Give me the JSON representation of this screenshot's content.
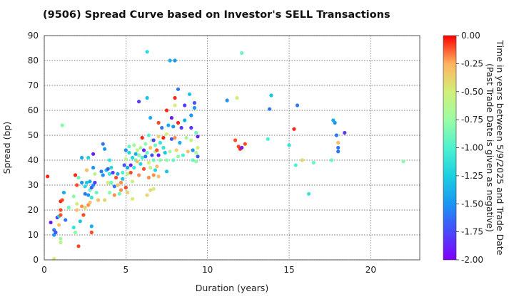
{
  "chart_data": {
    "type": "scatter",
    "title": "(9506)   Spread Curve based on Investor's SELL Transactions",
    "xlabel": "Duration (years)",
    "ylabel": "Spread (bp)",
    "xlim": [
      0,
      23
    ],
    "ylim": [
      0,
      90
    ],
    "xticks": [
      0,
      5,
      10,
      15,
      20
    ],
    "yticks": [
      0,
      10,
      20,
      30,
      40,
      50,
      60,
      70,
      80,
      90
    ],
    "grid": true,
    "colorbar": {
      "label_line1": "Time in years between 5/9/2025 and Trade Date",
      "label_line2": "(Past Trade Date is given as negative)",
      "range": [
        -2.0,
        0.0
      ],
      "ticks": [
        "0.00",
        "-0.25",
        "-0.50",
        "-0.75",
        "-1.00",
        "-1.25",
        "-1.50",
        "-1.75",
        "-2.00"
      ],
      "colormap": "rainbow"
    },
    "points": [
      [
        0.2,
        33.5,
        -0.05
      ],
      [
        0.4,
        15,
        -1.9
      ],
      [
        0.6,
        12,
        -1.6
      ],
      [
        0.6,
        10,
        -1.5
      ],
      [
        0.7,
        11,
        -1.7
      ],
      [
        0.6,
        0.5,
        -0.5
      ],
      [
        0.8,
        17,
        -1.8
      ],
      [
        0.9,
        17.5,
        -1.2
      ],
      [
        0.9,
        14,
        -0.3
      ],
      [
        1.0,
        20,
        -0.1
      ],
      [
        1.0,
        18,
        -0.1
      ],
      [
        1.0,
        23.5,
        -0.05
      ],
      [
        1.0,
        8.5,
        -0.7
      ],
      [
        1.0,
        7,
        -0.6
      ],
      [
        1.1,
        24,
        -0.1
      ],
      [
        1.1,
        54,
        -0.8
      ],
      [
        1.2,
        27,
        -1.4
      ],
      [
        1.3,
        16,
        -1.6
      ],
      [
        1.5,
        21,
        -0.9
      ],
      [
        1.8,
        25.5,
        -0.8
      ],
      [
        1.8,
        13,
        -1.1
      ],
      [
        1.9,
        11,
        -0.8
      ],
      [
        1.9,
        34,
        -0.05
      ],
      [
        2.0,
        30,
        -0.1
      ],
      [
        2.0,
        22.5,
        -0.5
      ],
      [
        2.0,
        20,
        -0.3
      ],
      [
        2.1,
        33,
        -0.9
      ],
      [
        2.1,
        5.5,
        -0.1
      ],
      [
        2.2,
        15.5,
        -1.3
      ],
      [
        2.3,
        31,
        -1.5
      ],
      [
        2.3,
        41,
        -1.4
      ],
      [
        2.3,
        21.5,
        -0.2
      ],
      [
        2.4,
        18,
        -0.1
      ],
      [
        2.5,
        29.5,
        -1.2
      ],
      [
        2.5,
        26.5,
        -1.6
      ],
      [
        2.5,
        21,
        -0.4
      ],
      [
        2.6,
        36,
        -0.3
      ],
      [
        2.6,
        31,
        -1.3
      ],
      [
        2.7,
        41,
        -1.2
      ],
      [
        2.7,
        26,
        -1.5
      ],
      [
        2.7,
        22,
        -0.2
      ],
      [
        2.8,
        31.5,
        -1.4
      ],
      [
        2.8,
        28,
        -0.9
      ],
      [
        2.8,
        23,
        -0.3
      ],
      [
        2.9,
        29,
        -1.7
      ],
      [
        2.9,
        25,
        -1.1
      ],
      [
        2.9,
        13.5,
        -1.4
      ],
      [
        2.9,
        11,
        -0.1
      ],
      [
        3.0,
        42.5,
        -1.9
      ],
      [
        3.0,
        37,
        -1.5
      ],
      [
        3.0,
        30,
        -1.5
      ],
      [
        3.1,
        34.5,
        -0.6
      ],
      [
        3.1,
        31,
        -1.8
      ],
      [
        3.2,
        27,
        -0.9
      ],
      [
        3.3,
        24,
        -0.3
      ],
      [
        3.5,
        35.5,
        -1.6
      ],
      [
        3.6,
        34,
        -1.5
      ],
      [
        3.6,
        46.5,
        -1.6
      ],
      [
        3.7,
        44.5,
        -1.5
      ],
      [
        3.7,
        24,
        -0.4
      ],
      [
        3.8,
        36,
        -1.3
      ],
      [
        3.9,
        36.5,
        -1.7
      ],
      [
        3.9,
        31,
        -0.5
      ],
      [
        4.0,
        40,
        -1.1
      ],
      [
        4.0,
        34.5,
        -1.1
      ],
      [
        4.0,
        27,
        -0.8
      ],
      [
        4.1,
        37,
        -1.2
      ],
      [
        4.1,
        31,
        -0.9
      ],
      [
        4.2,
        35,
        -1.8
      ],
      [
        4.3,
        29.5,
        -1.6
      ],
      [
        4.3,
        26,
        -0.2
      ],
      [
        4.4,
        33,
        -0.1
      ],
      [
        4.5,
        34.5,
        -1.4
      ],
      [
        4.5,
        30,
        -0.3
      ],
      [
        4.6,
        26.5,
        -0.9
      ],
      [
        4.7,
        31,
        -0.2
      ],
      [
        4.7,
        28,
        -0.2
      ],
      [
        4.8,
        35,
        -1.0
      ],
      [
        4.8,
        32.5,
        -1.3
      ],
      [
        4.9,
        38,
        -1.7
      ],
      [
        5.0,
        44,
        -1.5
      ],
      [
        5.0,
        40.5,
        -0.6
      ],
      [
        5.0,
        29,
        -0.1
      ],
      [
        5.1,
        37,
        -1.4
      ],
      [
        5.1,
        34.5,
        -0.6
      ],
      [
        5.1,
        27,
        -0.4
      ],
      [
        5.2,
        45.5,
        -0.9
      ],
      [
        5.2,
        43,
        -1.2
      ],
      [
        5.3,
        38,
        -1.9
      ],
      [
        5.3,
        35,
        -0.1
      ],
      [
        5.4,
        41,
        -1.2
      ],
      [
        5.4,
        31.5,
        -0.5
      ],
      [
        5.4,
        24.5,
        -0.5
      ],
      [
        5.5,
        46,
        -0.7
      ],
      [
        5.5,
        37,
        -1.1
      ],
      [
        5.6,
        42.5,
        -1.4
      ],
      [
        5.6,
        40,
        -0.9
      ],
      [
        5.7,
        44,
        -0.6
      ],
      [
        5.7,
        39.5,
        -0.3
      ],
      [
        5.8,
        42,
        -0.8
      ],
      [
        5.8,
        34,
        -0.2
      ],
      [
        5.8,
        63.5,
        -1.8
      ],
      [
        5.9,
        45,
        -0.7
      ],
      [
        5.9,
        38.5,
        -1.2
      ],
      [
        6.0,
        49,
        -0.05
      ],
      [
        6.0,
        41,
        -1.0
      ],
      [
        6.1,
        36.5,
        -0.1
      ],
      [
        6.1,
        44,
        -1.9
      ],
      [
        6.2,
        46.5,
        -0.8
      ],
      [
        6.2,
        41.5,
        -1.6
      ],
      [
        6.3,
        83.5,
        -1.2
      ],
      [
        6.3,
        65,
        -1.3
      ],
      [
        6.3,
        43,
        -0.9
      ],
      [
        6.3,
        26,
        -0.4
      ],
      [
        6.4,
        50,
        -1.0
      ],
      [
        6.4,
        39,
        -0.5
      ],
      [
        6.4,
        33,
        -0.2
      ],
      [
        6.5,
        57,
        -1.4
      ],
      [
        6.5,
        45,
        -0.3
      ],
      [
        6.5,
        37,
        -0.6
      ],
      [
        6.5,
        28,
        -0.4
      ],
      [
        6.6,
        42,
        -1.7
      ],
      [
        6.6,
        48,
        -0.7
      ],
      [
        6.7,
        48,
        -1.8
      ],
      [
        6.7,
        40,
        -0.9
      ],
      [
        6.7,
        34,
        -0.2
      ],
      [
        6.7,
        28.5,
        -0.5
      ],
      [
        6.8,
        46,
        -0.9
      ],
      [
        6.8,
        43.5,
        -0.6
      ],
      [
        6.8,
        36,
        -1.2
      ],
      [
        6.9,
        44,
        -0.1
      ],
      [
        6.9,
        37.5,
        -0.3
      ],
      [
        7.0,
        55,
        -0.1
      ],
      [
        7.0,
        49.5,
        -0.4
      ],
      [
        7.0,
        42,
        -1.9
      ],
      [
        7.0,
        33.5,
        -0.3
      ],
      [
        7.1,
        47,
        -1.1
      ],
      [
        7.1,
        40,
        -0.8
      ],
      [
        7.2,
        53,
        -1.6
      ],
      [
        7.3,
        45,
        -1.1
      ],
      [
        7.3,
        49,
        -0.05
      ],
      [
        7.4,
        43,
        -1.3
      ],
      [
        7.5,
        60,
        -0.05
      ],
      [
        7.5,
        50.5,
        -0.5
      ],
      [
        7.5,
        40,
        -0.8
      ],
      [
        7.5,
        35.5,
        -1.3
      ],
      [
        7.6,
        54,
        -1.4
      ],
      [
        7.7,
        43.5,
        -0.7
      ],
      [
        7.7,
        80,
        -1.4
      ],
      [
        7.8,
        57,
        -1.9
      ],
      [
        7.8,
        48.5,
        -1.7
      ],
      [
        7.9,
        53.5,
        -1.5
      ],
      [
        7.9,
        40,
        -0.9
      ],
      [
        8.0,
        80,
        -1.5
      ],
      [
        8.0,
        65,
        -0.05
      ],
      [
        8.0,
        62,
        -0.5
      ],
      [
        8.0,
        49,
        -0.2
      ],
      [
        8.1,
        44,
        -0.4
      ],
      [
        8.2,
        68.5,
        -1.6
      ],
      [
        8.2,
        55,
        -0.05
      ],
      [
        8.2,
        41.5,
        -0.8
      ],
      [
        8.3,
        47,
        -1.4
      ],
      [
        8.4,
        53,
        -1.8
      ],
      [
        8.5,
        42,
        -1.0
      ],
      [
        8.6,
        62,
        -1.8
      ],
      [
        8.6,
        56,
        -1.4
      ],
      [
        8.7,
        49,
        -0.7
      ],
      [
        8.8,
        43.5,
        -0.3
      ],
      [
        8.9,
        66.5,
        -1.3
      ],
      [
        9.0,
        53,
        -1.8
      ],
      [
        9.0,
        58,
        -1.5
      ],
      [
        9.0,
        48,
        -0.6
      ],
      [
        9.1,
        44,
        -1.5
      ],
      [
        9.1,
        40,
        -0.9
      ],
      [
        9.2,
        63,
        -1.7
      ],
      [
        9.2,
        61,
        -1.5
      ],
      [
        9.3,
        51,
        -0.9
      ],
      [
        9.3,
        43,
        -0.7
      ],
      [
        9.3,
        39.5,
        -0.8
      ],
      [
        9.4,
        49.5,
        -1.9
      ],
      [
        9.4,
        45,
        -0.5
      ],
      [
        9.4,
        41.5,
        -1.7
      ],
      [
        11.2,
        64,
        -1.5
      ],
      [
        11.8,
        65,
        -0.5
      ],
      [
        11.7,
        48,
        -0.1
      ],
      [
        11.9,
        45.5,
        -0.1
      ],
      [
        12.0,
        44.5,
        -0.05
      ],
      [
        12.1,
        45,
        -1.9
      ],
      [
        12.1,
        83,
        -0.9
      ],
      [
        12.3,
        46.5,
        -0.1
      ],
      [
        13.7,
        48.5,
        -1.0
      ],
      [
        13.8,
        60.5,
        -1.6
      ],
      [
        13.9,
        66,
        -1.3
      ],
      [
        15.0,
        46,
        -1.1
      ],
      [
        15.3,
        52.5,
        -0.05
      ],
      [
        15.4,
        38,
        -1.0
      ],
      [
        15.5,
        62,
        -1.6
      ],
      [
        15.8,
        40,
        -0.4
      ],
      [
        16.2,
        26.5,
        -1.1
      ],
      [
        16.5,
        39,
        -0.9
      ],
      [
        17.6,
        40,
        -0.9
      ],
      [
        17.7,
        56,
        -1.4
      ],
      [
        17.8,
        55,
        -1.5
      ],
      [
        17.9,
        50,
        -1.6
      ],
      [
        18.0,
        45,
        -1.6
      ],
      [
        18.0,
        47,
        -0.3
      ],
      [
        18.0,
        43.5,
        -1.6
      ],
      [
        18.4,
        51,
        -1.8
      ],
      [
        22.0,
        39.5,
        -0.8
      ]
    ]
  }
}
